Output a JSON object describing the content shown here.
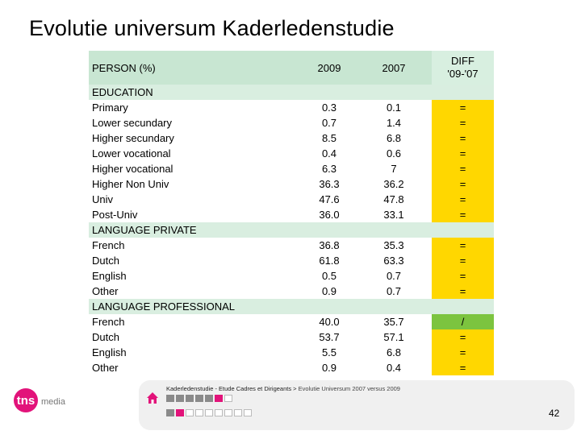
{
  "title": "Evolutie universum Kaderledenstudie",
  "table": {
    "headers": {
      "label": "PERSON (%)",
      "col_2009": "2009",
      "col_2007": "2007",
      "diff_line1": "DIFF",
      "diff_line2": "'09-'07"
    },
    "rows": [
      {
        "label": "EDUCATION",
        "section": true,
        "v2009": "",
        "v2007": "",
        "diff": ""
      },
      {
        "label": "Primary",
        "v2009": "0.3",
        "v2007": "0.1",
        "diff": "=",
        "diff_color": "#ffd700"
      },
      {
        "label": "Lower secundary",
        "v2009": "0.7",
        "v2007": "1.4",
        "diff": "=",
        "diff_color": "#ffd700"
      },
      {
        "label": "Higher secundary",
        "v2009": "8.5",
        "v2007": "6.8",
        "diff": "=",
        "diff_color": "#ffd700"
      },
      {
        "label": "Lower vocational",
        "v2009": "0.4",
        "v2007": "0.6",
        "diff": "=",
        "diff_color": "#ffd700"
      },
      {
        "label": "Higher vocational",
        "v2009": "6.3",
        "v2007": "7",
        "diff": "=",
        "diff_color": "#ffd700"
      },
      {
        "label": "Higher Non Univ",
        "v2009": "36.3",
        "v2007": "36.2",
        "diff": "=",
        "diff_color": "#ffd700"
      },
      {
        "label": "Univ",
        "v2009": "47.6",
        "v2007": "47.8",
        "diff": "=",
        "diff_color": "#ffd700"
      },
      {
        "label": "Post-Univ",
        "v2009": "36.0",
        "v2007": "33.1",
        "diff": "=",
        "diff_color": "#ffd700"
      },
      {
        "label": "LANGUAGE PRIVATE",
        "section": true,
        "v2009": "",
        "v2007": "",
        "diff": ""
      },
      {
        "label": "French",
        "v2009": "36.8",
        "v2007": "35.3",
        "diff": "=",
        "diff_color": "#ffd700"
      },
      {
        "label": "Dutch",
        "v2009": "61.8",
        "v2007": "63.3",
        "diff": "=",
        "diff_color": "#ffd700"
      },
      {
        "label": "English",
        "v2009": "0.5",
        "v2007": "0.7",
        "diff": "=",
        "diff_color": "#ffd700"
      },
      {
        "label": "Other",
        "v2009": "0.9",
        "v2007": "0.7",
        "diff": "=",
        "diff_color": "#ffd700"
      },
      {
        "label": "LANGUAGE PROFESSIONAL",
        "section": true,
        "v2009": "",
        "v2007": "",
        "diff": ""
      },
      {
        "label": "French",
        "v2009": "40.0",
        "v2007": "35.7",
        "diff": "/",
        "diff_color": "#7cc43f"
      },
      {
        "label": "Dutch",
        "v2009": "53.7",
        "v2007": "57.1",
        "diff": "=",
        "diff_color": "#ffd700"
      },
      {
        "label": "English",
        "v2009": "5.5",
        "v2007": "6.8",
        "diff": "=",
        "diff_color": "#ffd700"
      },
      {
        "label": "Other",
        "v2009": "0.9",
        "v2007": "0.4",
        "diff": "=",
        "diff_color": "#ffd700"
      }
    ]
  },
  "footer": {
    "breadcrumb_main": "Kaderledenstudie - Etude Cadres et Dirigeants",
    "breadcrumb_sep": " > ",
    "breadcrumb_current": "Evolutie Universum 2007 versus 2009",
    "page_number": "42"
  },
  "logo": {
    "brand": "tns",
    "suffix": "media",
    "brand_color": "#e2137a"
  },
  "icons": {
    "home": "home-icon"
  },
  "nav_squares": {
    "row1": [
      "filled",
      "filled",
      "filled",
      "filled",
      "filled",
      "active",
      "hollow"
    ],
    "row2": [
      "filled",
      "active",
      "hollow",
      "hollow",
      "hollow",
      "hollow",
      "hollow",
      "hollow",
      "hollow"
    ]
  }
}
